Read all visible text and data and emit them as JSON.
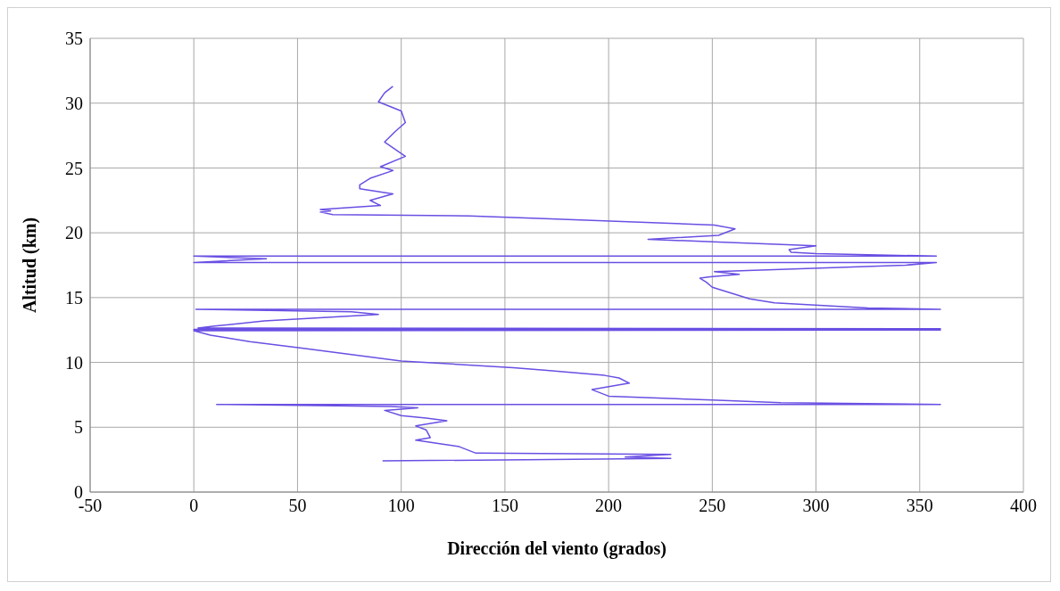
{
  "chart_data": {
    "type": "line",
    "xlabel": "Dirección del viento (grados)",
    "ylabel": "Altitud (km)",
    "color": "#6a4fe3",
    "marker": "none",
    "grid": true,
    "xlim": [
      -50,
      400
    ],
    "xticks": [
      -50,
      0,
      50,
      100,
      150,
      200,
      250,
      300,
      350,
      400
    ],
    "ylim": [
      0,
      35
    ],
    "yticks": [
      0,
      5,
      10,
      15,
      20,
      25,
      30,
      35
    ],
    "x": [
      91,
      230,
      208,
      230,
      136,
      128,
      120,
      107,
      114,
      112,
      107,
      122,
      112,
      100,
      92,
      108,
      95,
      11,
      360,
      283,
      250,
      200,
      192,
      210,
      205,
      198,
      169,
      154,
      100,
      52,
      27,
      8,
      0,
      360,
      0,
      360,
      2,
      10,
      34,
      89,
      76,
      1,
      360,
      325,
      280,
      268,
      250,
      247,
      244,
      249,
      263,
      251,
      343,
      358,
      0,
      35,
      0,
      358,
      300,
      288,
      287,
      300,
      250,
      219,
      253,
      261,
      251,
      169,
      133,
      67,
      61,
      66,
      61,
      90,
      85,
      96,
      80,
      80,
      85,
      96,
      90,
      102,
      92,
      97,
      102,
      100,
      89,
      92,
      96
    ],
    "values": [
      2.4,
      2.6,
      2.7,
      2.9,
      3.0,
      3.5,
      3.7,
      4.0,
      4.2,
      4.8,
      5.1,
      5.5,
      5.7,
      5.9,
      6.3,
      6.5,
      6.6,
      6.76,
      6.76,
      6.9,
      7.1,
      7.4,
      7.9,
      8.4,
      8.8,
      9.0,
      9.4,
      9.6,
      10.1,
      11.1,
      11.6,
      12.1,
      12.45,
      12.5,
      12.55,
      12.6,
      12.65,
      12.8,
      13.2,
      13.7,
      13.9,
      14.1,
      14.1,
      14.2,
      14.6,
      14.9,
      15.8,
      16.2,
      16.5,
      16.6,
      16.8,
      17.0,
      17.5,
      17.7,
      17.7,
      18.0,
      18.2,
      18.2,
      18.4,
      18.5,
      18.7,
      19.0,
      19.3,
      19.5,
      19.8,
      20.3,
      20.6,
      21.1,
      21.3,
      21.4,
      21.6,
      21.7,
      21.8,
      22.1,
      22.5,
      23.0,
      23.4,
      23.7,
      24.2,
      24.8,
      25.1,
      25.9,
      27.0,
      27.8,
      28.5,
      29.4,
      30.1,
      30.8,
      31.3
    ]
  }
}
